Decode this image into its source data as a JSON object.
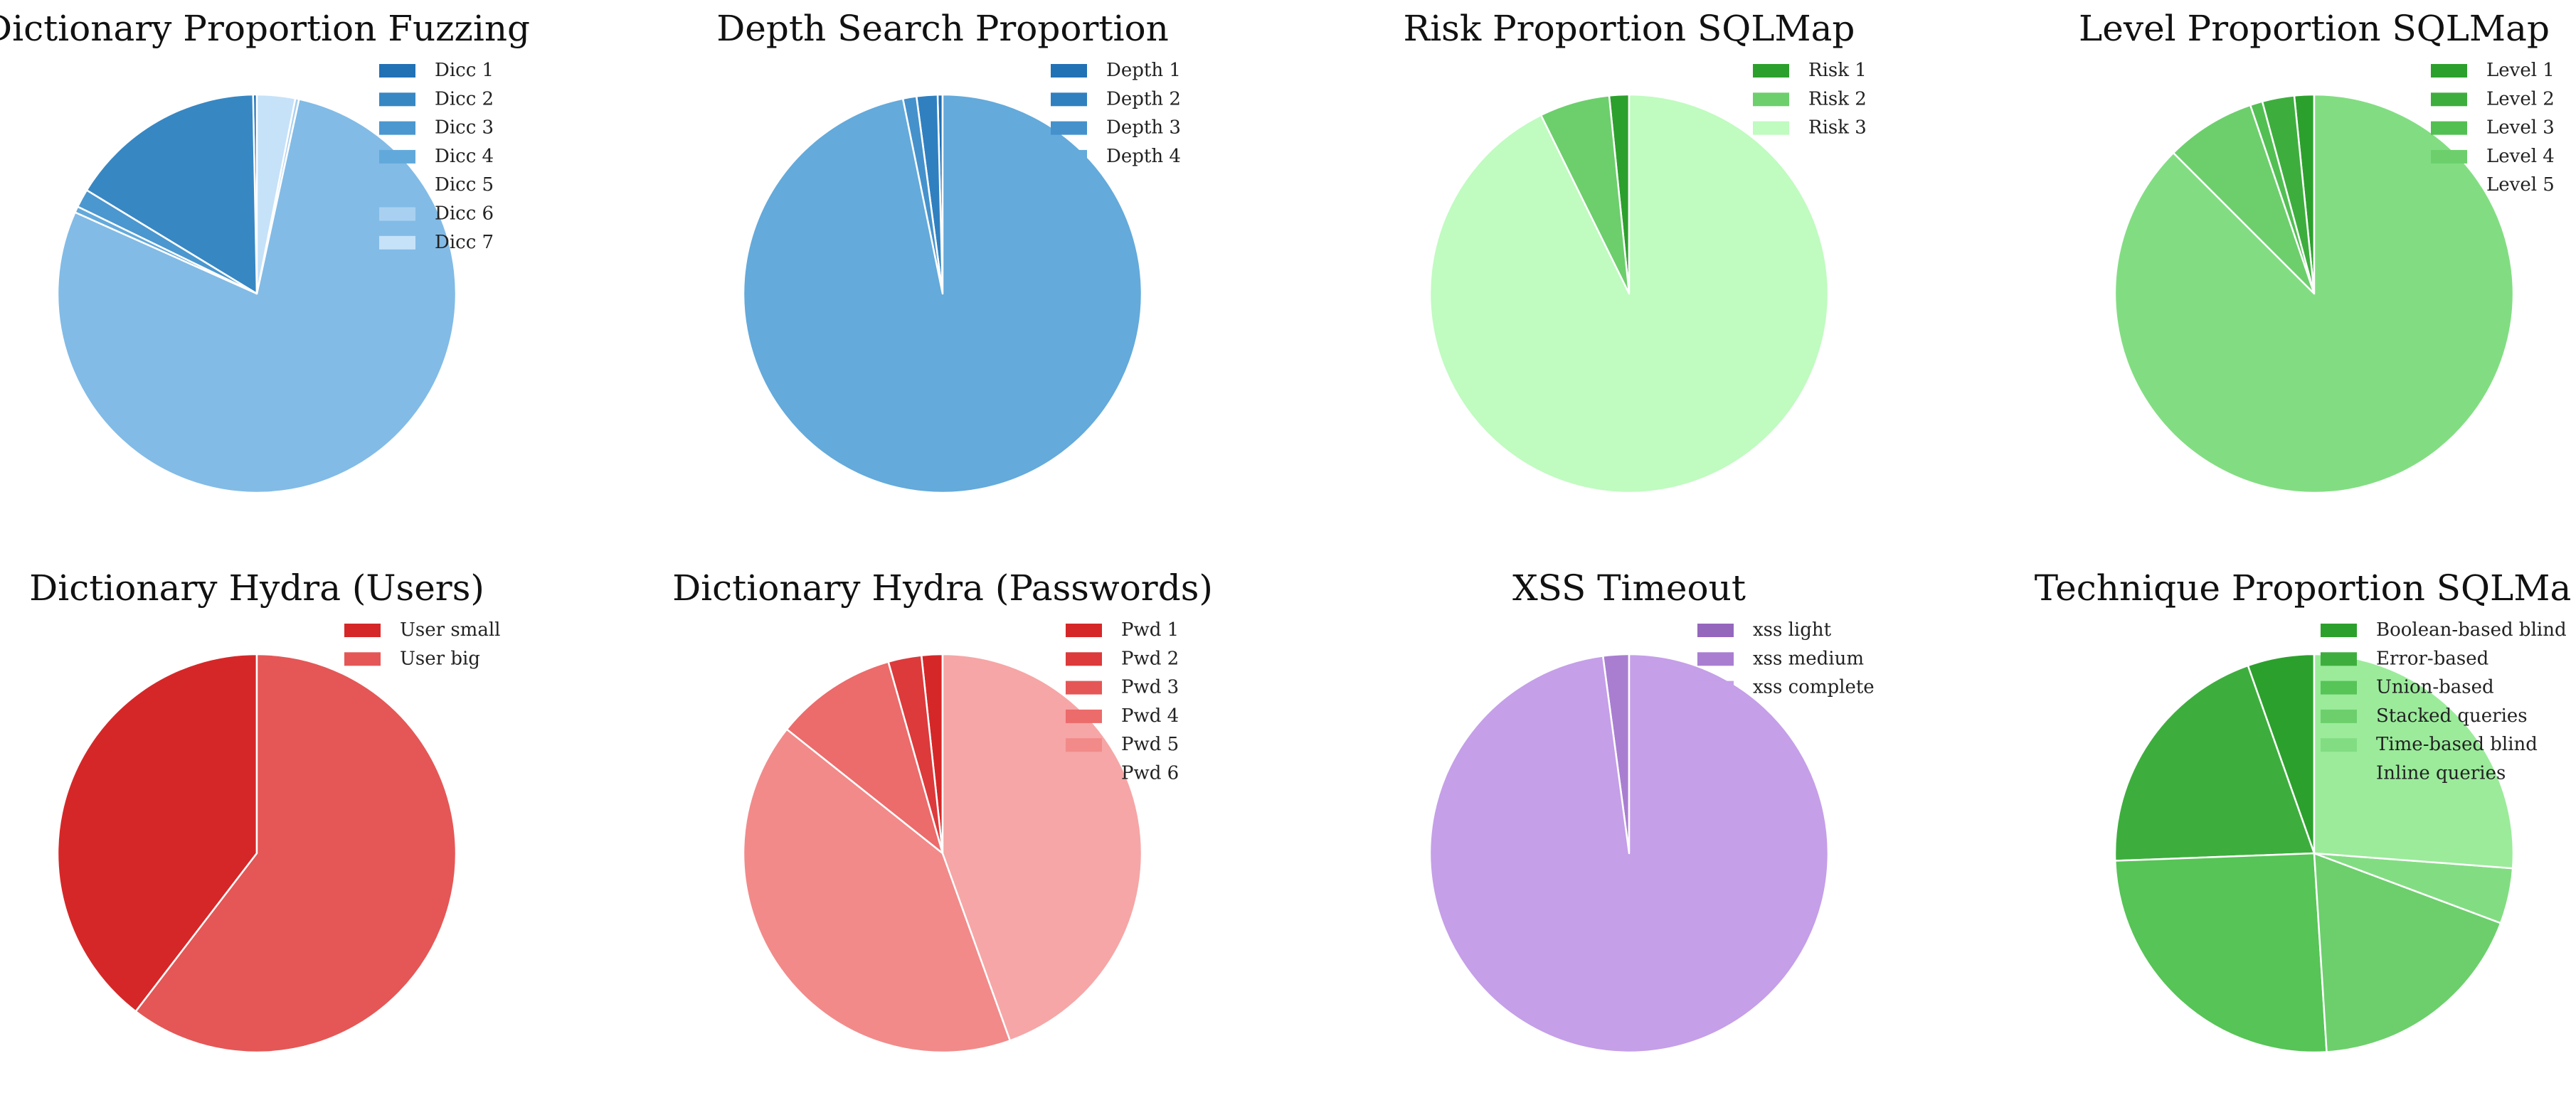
{
  "chart_data": [
    {
      "type": "pie",
      "title": "Dictionary Proportion Fuzzing",
      "labels": [
        "Dicc 1",
        "Dicc 2",
        "Dicc 3",
        "Dicc 4",
        "Dicc 5",
        "Dicc 6",
        "Dicc 7"
      ],
      "values": [
        0.3,
        16.0,
        1.5,
        0.5,
        78.3,
        0.3,
        3.1
      ],
      "colors": [
        "#2171b5",
        "#3787c3",
        "#4b97cf",
        "#62a9db",
        "#82bbe6",
        "#a9d0f0",
        "#c6e2f9"
      ],
      "legend": "top-right"
    },
    {
      "type": "pie",
      "title": "Depth Search Proportion",
      "labels": [
        "Depth 1",
        "Depth 2",
        "Depth 3",
        "Depth 4"
      ],
      "values": [
        0.4,
        1.7,
        1.1,
        96.8
      ],
      "colors": [
        "#2171b5",
        "#3080c0",
        "#4591cc",
        "#64aadb"
      ],
      "legend": "top-right"
    },
    {
      "type": "pie",
      "title": "Risk Proportion SQLMap",
      "labels": [
        "Risk 1",
        "Risk 2",
        "Risk 3"
      ],
      "values": [
        1.6,
        5.7,
        92.7
      ],
      "colors": [
        "#2ca02c",
        "#6ccf6c",
        "#c0fbc0"
      ],
      "legend": "top-right"
    },
    {
      "type": "pie",
      "title": "Level Proportion SQLMap",
      "labels": [
        "Level 1",
        "Level 2",
        "Level 3",
        "Level 4",
        "Level 5"
      ],
      "values": [
        1.6,
        2.6,
        1.0,
        7.3,
        87.5
      ],
      "colors": [
        "#2ca02c",
        "#3dae3d",
        "#52bf52",
        "#6ccf6c",
        "#82dd82"
      ],
      "legend": "top-right"
    },
    {
      "type": "pie",
      "title": "Dictionary Hydra (Users)",
      "labels": [
        "User small",
        "User big"
      ],
      "values": [
        39.6,
        60.4
      ],
      "colors": [
        "#d62728",
        "#e45756"
      ],
      "legend": "top-right"
    },
    {
      "type": "pie",
      "title": "Dictionary Hydra (Passwords)",
      "labels": [
        "Pwd 1",
        "Pwd 2",
        "Pwd 3",
        "Pwd 4",
        "Pwd 5",
        "Pwd 6"
      ],
      "values": [
        1.7,
        2.7,
        0,
        9.9,
        41.2,
        44.5
      ],
      "colors": [
        "#d62728",
        "#dc3a3b",
        "#e45756",
        "#ec6b6b",
        "#f28a8a",
        "#f6a6a6"
      ],
      "legend": "top-right"
    },
    {
      "type": "pie",
      "title": "XSS Timeout",
      "labels": [
        "xss light",
        "xss medium",
        "xss complete"
      ],
      "values": [
        0,
        2.1,
        97.9
      ],
      "colors": [
        "#9467bd",
        "#a97ed1",
        "#c59fe8"
      ],
      "legend": "top-right"
    },
    {
      "type": "pie",
      "title": "Technique Proportion SQLMap",
      "labels": [
        "Boolean-based blind",
        "Error-based",
        "Union-based",
        "Stacked queries",
        "Time-based blind",
        "Inline queries"
      ],
      "values": [
        5.4,
        20.2,
        25.4,
        18.3,
        4.5,
        26.2
      ],
      "colors": [
        "#2ca02c",
        "#3dae3d",
        "#56c456",
        "#6ccf6c",
        "#82dd82",
        "#9beb9b"
      ],
      "legend": "top-right"
    }
  ]
}
